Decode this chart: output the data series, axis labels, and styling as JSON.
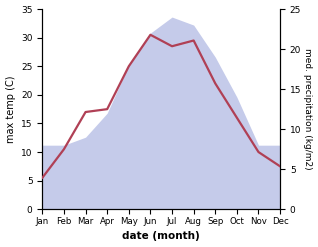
{
  "months": [
    "Jan",
    "Feb",
    "Mar",
    "Apr",
    "May",
    "Jun",
    "Jul",
    "Aug",
    "Sep",
    "Oct",
    "Nov",
    "Dec"
  ],
  "temperature": [
    5.5,
    10.5,
    17.0,
    17.5,
    25.0,
    30.5,
    28.5,
    29.5,
    22.0,
    16.0,
    10.0,
    7.5
  ],
  "precipitation": [
    8.0,
    8.0,
    9.0,
    12.0,
    18.0,
    22.0,
    24.0,
    23.0,
    19.0,
    14.0,
    8.0,
    8.0
  ],
  "temp_color": "#b04055",
  "precip_fill_color": "#c5cbea",
  "xlabel": "date (month)",
  "ylabel_left": "max temp (C)",
  "ylabel_right": "med. precipitation (kg/m2)",
  "ylim_left": [
    0,
    35
  ],
  "ylim_right": [
    0,
    25
  ],
  "yticks_left": [
    0,
    5,
    10,
    15,
    20,
    25,
    30,
    35
  ],
  "yticks_right": [
    0,
    5,
    10,
    15,
    20,
    25
  ],
  "background_color": "#ffffff",
  "line_width": 1.6
}
